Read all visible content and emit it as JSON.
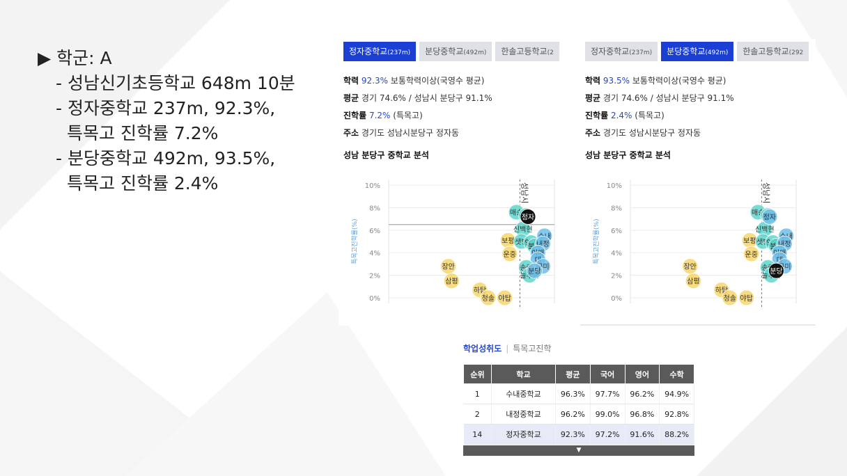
{
  "slide": {
    "bullets": {
      "head": "▶ 학군: A",
      "item1": "- 성남신기초등학교 648m 10분",
      "item2": "- 정자중학교 237m, 92.3%,",
      "item2b": "특목고 진학률 7.2%",
      "item3": "- 분당중학교 492m, 93.5%,",
      "item3b": "특목고 진학률 2.4%"
    }
  },
  "panels": [
    {
      "tabs": [
        {
          "name": "정자중학교",
          "dist": "(237m)",
          "active": true
        },
        {
          "name": "분당중학교",
          "dist": "(492m)",
          "active": false
        },
        {
          "name": "한솔고등학교",
          "dist": "(2",
          "active": false
        }
      ],
      "info": {
        "academic_label": "학력",
        "academic_value": "92.3%",
        "academic_desc": "보통학력이상(국영수 평균)",
        "avg_label": "평균",
        "avg_desc": "경기 74.6% / 성남시 분당구 91.1%",
        "rate_label": "진학률",
        "rate_value": "7.2%",
        "rate_desc": "(특목고)",
        "addr_label": "주소",
        "addr_desc": "경기도 성남시분당구 정자동"
      },
      "analysis_title": "성남 분당구 중학교 분석",
      "highlight": "정자"
    },
    {
      "tabs": [
        {
          "name": "정자중학교",
          "dist": "(237m)",
          "active": false
        },
        {
          "name": "분당중학교",
          "dist": "(492m)",
          "active": true
        },
        {
          "name": "한솔고등학교",
          "dist": "(292",
          "active": false
        }
      ],
      "info": {
        "academic_label": "학력",
        "academic_value": "93.5%",
        "academic_desc": "보통학력이상(국영수 평균)",
        "avg_label": "평균",
        "avg_desc": "경기 74.6% / 성남시 분당구 91.1%",
        "rate_label": "진학률",
        "rate_value": "2.4%",
        "rate_desc": "(특목고)",
        "addr_label": "주소",
        "addr_desc": "경기도 성남시분당구 정자동"
      },
      "analysis_title": "성남 분당구 중학교 분석",
      "highlight": "분당"
    }
  ],
  "chart_data": {
    "type": "scatter",
    "ylabel": "특목고진학률(%)",
    "yticks": [
      "10%",
      "8%",
      "6%",
      "4%",
      "2%",
      "0%"
    ],
    "ylim": [
      -0.5,
      10.5
    ],
    "xlim": [
      0,
      100
    ],
    "vline_label": "성남시",
    "vline_x": 80,
    "colors": {
      "yellow": "#f7d66b",
      "teal": "#5fd6cc",
      "blue": "#6fc0ea",
      "black": "#111111"
    },
    "points": [
      {
        "label": "장안",
        "x": 36,
        "y": 2.8,
        "color": "yellow"
      },
      {
        "label": "삼평",
        "x": 38,
        "y": 1.5,
        "color": "yellow"
      },
      {
        "label": "하탑",
        "x": 55,
        "y": 0.7,
        "color": "yellow"
      },
      {
        "label": "청솔",
        "x": 60,
        "y": 0.0,
        "color": "yellow"
      },
      {
        "label": "야탑",
        "x": 70,
        "y": 0.0,
        "color": "yellow"
      },
      {
        "label": "보평",
        "x": 72,
        "y": 5.1,
        "color": "yellow"
      },
      {
        "label": "운중",
        "x": 73,
        "y": 3.9,
        "color": "yellow"
      },
      {
        "label": "매송",
        "x": 77,
        "y": 7.6,
        "color": "teal"
      },
      {
        "label": "서현",
        "x": 83,
        "y": 7.3,
        "color": "teal"
      },
      {
        "label": "신백현",
        "x": 81,
        "y": 6.1,
        "color": "teal"
      },
      {
        "label": "샛별",
        "x": 80,
        "y": 5.0,
        "color": "teal"
      },
      {
        "label": "양영",
        "x": 86,
        "y": 4.9,
        "color": "teal"
      },
      {
        "label": "불곡",
        "x": 88,
        "y": 4.6,
        "color": "teal"
      },
      {
        "label": "수내",
        "x": 94,
        "y": 5.5,
        "color": "blue"
      },
      {
        "label": "내정",
        "x": 93,
        "y": 4.8,
        "color": "blue"
      },
      {
        "label": "이매",
        "x": 90,
        "y": 4.0,
        "color": "blue"
      },
      {
        "label": "대",
        "x": 90,
        "y": 3.4,
        "color": "blue"
      },
      {
        "label": "구미",
        "x": 93,
        "y": 2.8,
        "color": "blue"
      },
      {
        "label": "송림",
        "x": 83,
        "y": 2.7,
        "color": "teal"
      },
      {
        "label": "늘푸른",
        "x": 85,
        "y": 2.0,
        "color": "teal"
      },
      {
        "label": "분당",
        "x": 88,
        "y": 2.4,
        "color": "blue"
      },
      {
        "label": "정자",
        "x": 84,
        "y": 7.2,
        "color": "blue"
      }
    ]
  },
  "table": {
    "tab_active": "학업성취도",
    "tab_other": "특목고진학",
    "headers": [
      "순위",
      "학교",
      "평균",
      "국어",
      "영어",
      "수학"
    ],
    "rows": [
      [
        "1",
        "수내중학교",
        "96.3%",
        "97.7%",
        "96.2%",
        "94.9%"
      ],
      [
        "2",
        "내정중학교",
        "96.2%",
        "99.0%",
        "96.8%",
        "92.8%"
      ],
      [
        "14",
        "정자중학교",
        "92.3%",
        "97.2%",
        "91.6%",
        "88.2%"
      ]
    ],
    "more_icon": "▼"
  }
}
